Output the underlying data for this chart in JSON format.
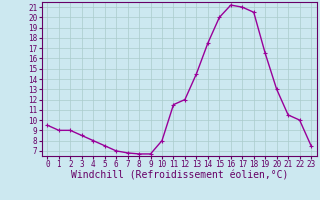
{
  "x": [
    0,
    1,
    2,
    3,
    4,
    5,
    6,
    7,
    8,
    9,
    10,
    11,
    12,
    13,
    14,
    15,
    16,
    17,
    18,
    19,
    20,
    21,
    22,
    23
  ],
  "y": [
    9.5,
    9.0,
    9.0,
    8.5,
    8.0,
    7.5,
    7.0,
    6.8,
    6.7,
    6.7,
    8.0,
    11.5,
    12.0,
    14.5,
    17.5,
    20.0,
    21.2,
    21.0,
    20.5,
    16.5,
    13.0,
    10.5,
    10.0,
    7.5
  ],
  "line_color": "#990099",
  "marker": "+",
  "marker_size": 3,
  "marker_linewidth": 0.8,
  "background_color": "#cce8f0",
  "grid_color": "#aacccc",
  "xlabel": "Windchill (Refroidissement éolien,°C)",
  "xlim": [
    -0.5,
    23.5
  ],
  "ylim": [
    6.5,
    21.5
  ],
  "yticks": [
    7,
    8,
    9,
    10,
    11,
    12,
    13,
    14,
    15,
    16,
    17,
    18,
    19,
    20,
    21
  ],
  "xticks": [
    0,
    1,
    2,
    3,
    4,
    5,
    6,
    7,
    8,
    9,
    10,
    11,
    12,
    13,
    14,
    15,
    16,
    17,
    18,
    19,
    20,
    21,
    22,
    23
  ],
  "tick_label_size": 5.5,
  "xlabel_size": 7,
  "axis_color": "#660066",
  "spine_color": "#660066",
  "linewidth": 1.0
}
